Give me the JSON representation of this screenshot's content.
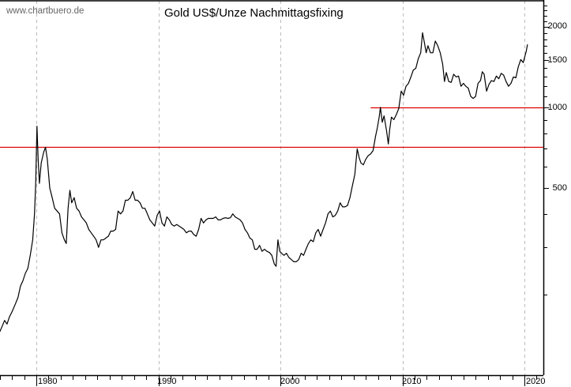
{
  "watermark": "www.chartbuero.de",
  "title": "Gold US$/Unze Nachmittagsfixing",
  "colors": {
    "line": "#000000",
    "resistance": "#dd0000",
    "grid": "#bbbbbb",
    "axis": "#000000"
  },
  "chart_data": {
    "type": "line",
    "title": "Gold US$/Unze Nachmittagsfixing",
    "xlabel": "",
    "ylabel": "",
    "y_scale": "log",
    "x_ticks": [
      "1980",
      "1990",
      "2000",
      "2010",
      "2020"
    ],
    "y_ticks": [
      "2000",
      "1500",
      "1000",
      "500"
    ],
    "grid": {
      "vertical_dashed_at_years": [
        1980,
        1990,
        2000,
        2010,
        2020
      ],
      "horizontal": false
    },
    "ylim": [
      140,
      2600
    ],
    "xlim": [
      1977.0,
      2021.5
    ],
    "horizontal_lines": [
      {
        "value": 1000,
        "from_year": 2007.4,
        "color": "#dd0000"
      },
      {
        "value": 712,
        "from_year": 1977.0,
        "color": "#dd0000"
      }
    ],
    "series": [
      {
        "name": "Gold US$/Unze",
        "points": [
          [
            1977.0,
            145
          ],
          [
            1977.2,
            152
          ],
          [
            1977.4,
            160
          ],
          [
            1977.6,
            155
          ],
          [
            1977.8,
            165
          ],
          [
            1978.0,
            172
          ],
          [
            1978.3,
            185
          ],
          [
            1978.5,
            195
          ],
          [
            1978.7,
            215
          ],
          [
            1978.9,
            225
          ],
          [
            1979.1,
            240
          ],
          [
            1979.3,
            250
          ],
          [
            1979.5,
            280
          ],
          [
            1979.7,
            320
          ],
          [
            1979.85,
            400
          ],
          [
            1979.95,
            520
          ],
          [
            1980.05,
            850
          ],
          [
            1980.15,
            640
          ],
          [
            1980.25,
            520
          ],
          [
            1980.4,
            620
          ],
          [
            1980.6,
            680
          ],
          [
            1980.75,
            710
          ],
          [
            1980.9,
            640
          ],
          [
            1981.1,
            500
          ],
          [
            1981.3,
            460
          ],
          [
            1981.5,
            420
          ],
          [
            1981.7,
            410
          ],
          [
            1981.9,
            400
          ],
          [
            1982.1,
            340
          ],
          [
            1982.3,
            320
          ],
          [
            1982.45,
            310
          ],
          [
            1982.6,
            420
          ],
          [
            1982.75,
            490
          ],
          [
            1982.9,
            440
          ],
          [
            1983.1,
            460
          ],
          [
            1983.3,
            420
          ],
          [
            1983.5,
            410
          ],
          [
            1983.7,
            390
          ],
          [
            1983.9,
            380
          ],
          [
            1984.1,
            370
          ],
          [
            1984.3,
            350
          ],
          [
            1984.5,
            340
          ],
          [
            1984.7,
            330
          ],
          [
            1984.9,
            320
          ],
          [
            1985.1,
            300
          ],
          [
            1985.3,
            320
          ],
          [
            1985.5,
            320
          ],
          [
            1985.7,
            325
          ],
          [
            1985.9,
            330
          ],
          [
            1986.1,
            345
          ],
          [
            1986.3,
            345
          ],
          [
            1986.5,
            350
          ],
          [
            1986.7,
            410
          ],
          [
            1986.9,
            400
          ],
          [
            1987.1,
            410
          ],
          [
            1987.3,
            450
          ],
          [
            1987.5,
            450
          ],
          [
            1987.7,
            460
          ],
          [
            1987.9,
            485
          ],
          [
            1988.1,
            450
          ],
          [
            1988.3,
            450
          ],
          [
            1988.5,
            440
          ],
          [
            1988.7,
            420
          ],
          [
            1988.9,
            420
          ],
          [
            1989.1,
            400
          ],
          [
            1989.3,
            380
          ],
          [
            1989.5,
            370
          ],
          [
            1989.7,
            360
          ],
          [
            1989.9,
            395
          ],
          [
            1990.1,
            410
          ],
          [
            1990.3,
            370
          ],
          [
            1990.5,
            360
          ],
          [
            1990.7,
            390
          ],
          [
            1990.9,
            380
          ],
          [
            1991.1,
            365
          ],
          [
            1991.3,
            360
          ],
          [
            1991.5,
            365
          ],
          [
            1991.7,
            360
          ],
          [
            1991.9,
            355
          ],
          [
            1992.1,
            350
          ],
          [
            1992.3,
            340
          ],
          [
            1992.5,
            345
          ],
          [
            1992.7,
            345
          ],
          [
            1992.9,
            335
          ],
          [
            1993.1,
            330
          ],
          [
            1993.3,
            350
          ],
          [
            1993.5,
            385
          ],
          [
            1993.7,
            370
          ],
          [
            1993.9,
            380
          ],
          [
            1994.1,
            385
          ],
          [
            1994.3,
            385
          ],
          [
            1994.5,
            385
          ],
          [
            1994.7,
            390
          ],
          [
            1994.9,
            380
          ],
          [
            1995.1,
            380
          ],
          [
            1995.3,
            385
          ],
          [
            1995.5,
            387
          ],
          [
            1995.7,
            385
          ],
          [
            1995.9,
            387
          ],
          [
            1996.1,
            400
          ],
          [
            1996.3,
            390
          ],
          [
            1996.5,
            385
          ],
          [
            1996.7,
            380
          ],
          [
            1996.9,
            370
          ],
          [
            1997.1,
            350
          ],
          [
            1997.3,
            340
          ],
          [
            1997.5,
            325
          ],
          [
            1997.7,
            320
          ],
          [
            1997.9,
            295
          ],
          [
            1998.1,
            295
          ],
          [
            1998.3,
            305
          ],
          [
            1998.5,
            290
          ],
          [
            1998.7,
            295
          ],
          [
            1998.9,
            290
          ],
          [
            1999.1,
            287
          ],
          [
            1999.3,
            280
          ],
          [
            1999.5,
            260
          ],
          [
            1999.65,
            255
          ],
          [
            1999.8,
            320
          ],
          [
            1999.95,
            290
          ],
          [
            2000.1,
            285
          ],
          [
            2000.3,
            280
          ],
          [
            2000.5,
            285
          ],
          [
            2000.7,
            275
          ],
          [
            2000.9,
            270
          ],
          [
            2001.1,
            265
          ],
          [
            2001.3,
            265
          ],
          [
            2001.5,
            270
          ],
          [
            2001.7,
            285
          ],
          [
            2001.9,
            280
          ],
          [
            2002.1,
            295
          ],
          [
            2002.3,
            310
          ],
          [
            2002.5,
            320
          ],
          [
            2002.7,
            315
          ],
          [
            2002.9,
            340
          ],
          [
            2003.1,
            350
          ],
          [
            2003.3,
            330
          ],
          [
            2003.5,
            350
          ],
          [
            2003.7,
            370
          ],
          [
            2003.9,
            400
          ],
          [
            2004.1,
            410
          ],
          [
            2004.3,
            390
          ],
          [
            2004.5,
            395
          ],
          [
            2004.7,
            410
          ],
          [
            2004.9,
            440
          ],
          [
            2005.1,
            425
          ],
          [
            2005.3,
            425
          ],
          [
            2005.5,
            430
          ],
          [
            2005.7,
            460
          ],
          [
            2005.9,
            510
          ],
          [
            2006.1,
            560
          ],
          [
            2006.3,
            700
          ],
          [
            2006.45,
            650
          ],
          [
            2006.6,
            620
          ],
          [
            2006.8,
            610
          ],
          [
            2007.0,
            640
          ],
          [
            2007.2,
            660
          ],
          [
            2007.4,
            670
          ],
          [
            2007.6,
            690
          ],
          [
            2007.8,
            780
          ],
          [
            2007.95,
            840
          ],
          [
            2008.1,
            920
          ],
          [
            2008.2,
            1000
          ],
          [
            2008.35,
            880
          ],
          [
            2008.5,
            930
          ],
          [
            2008.7,
            820
          ],
          [
            2008.85,
            730
          ],
          [
            2008.95,
            820
          ],
          [
            2009.1,
            920
          ],
          [
            2009.3,
            900
          ],
          [
            2009.5,
            940
          ],
          [
            2009.7,
            990
          ],
          [
            2009.9,
            1150
          ],
          [
            2010.1,
            1110
          ],
          [
            2010.3,
            1200
          ],
          [
            2010.5,
            1230
          ],
          [
            2010.7,
            1300
          ],
          [
            2010.9,
            1380
          ],
          [
            2011.1,
            1400
          ],
          [
            2011.3,
            1520
          ],
          [
            2011.5,
            1600
          ],
          [
            2011.65,
            1900
          ],
          [
            2011.8,
            1750
          ],
          [
            2011.95,
            1600
          ],
          [
            2012.1,
            1700
          ],
          [
            2012.3,
            1600
          ],
          [
            2012.5,
            1600
          ],
          [
            2012.7,
            1770
          ],
          [
            2012.9,
            1700
          ],
          [
            2013.1,
            1600
          ],
          [
            2013.3,
            1450
          ],
          [
            2013.45,
            1250
          ],
          [
            2013.6,
            1350
          ],
          [
            2013.8,
            1250
          ],
          [
            2014.0,
            1240
          ],
          [
            2014.2,
            1330
          ],
          [
            2014.4,
            1300
          ],
          [
            2014.6,
            1310
          ],
          [
            2014.8,
            1200
          ],
          [
            2015.0,
            1230
          ],
          [
            2015.2,
            1200
          ],
          [
            2015.4,
            1180
          ],
          [
            2015.6,
            1100
          ],
          [
            2015.8,
            1080
          ],
          [
            2016.0,
            1100
          ],
          [
            2016.2,
            1230
          ],
          [
            2016.4,
            1260
          ],
          [
            2016.55,
            1360
          ],
          [
            2016.7,
            1330
          ],
          [
            2016.9,
            1150
          ],
          [
            2017.1,
            1220
          ],
          [
            2017.3,
            1260
          ],
          [
            2017.5,
            1250
          ],
          [
            2017.7,
            1310
          ],
          [
            2017.9,
            1280
          ],
          [
            2018.1,
            1340
          ],
          [
            2018.3,
            1320
          ],
          [
            2018.5,
            1250
          ],
          [
            2018.7,
            1200
          ],
          [
            2018.9,
            1230
          ],
          [
            2019.1,
            1300
          ],
          [
            2019.3,
            1290
          ],
          [
            2019.5,
            1420
          ],
          [
            2019.7,
            1510
          ],
          [
            2019.9,
            1470
          ],
          [
            2020.05,
            1560
          ],
          [
            2020.15,
            1620
          ],
          [
            2020.25,
            1720
          ]
        ]
      }
    ]
  }
}
